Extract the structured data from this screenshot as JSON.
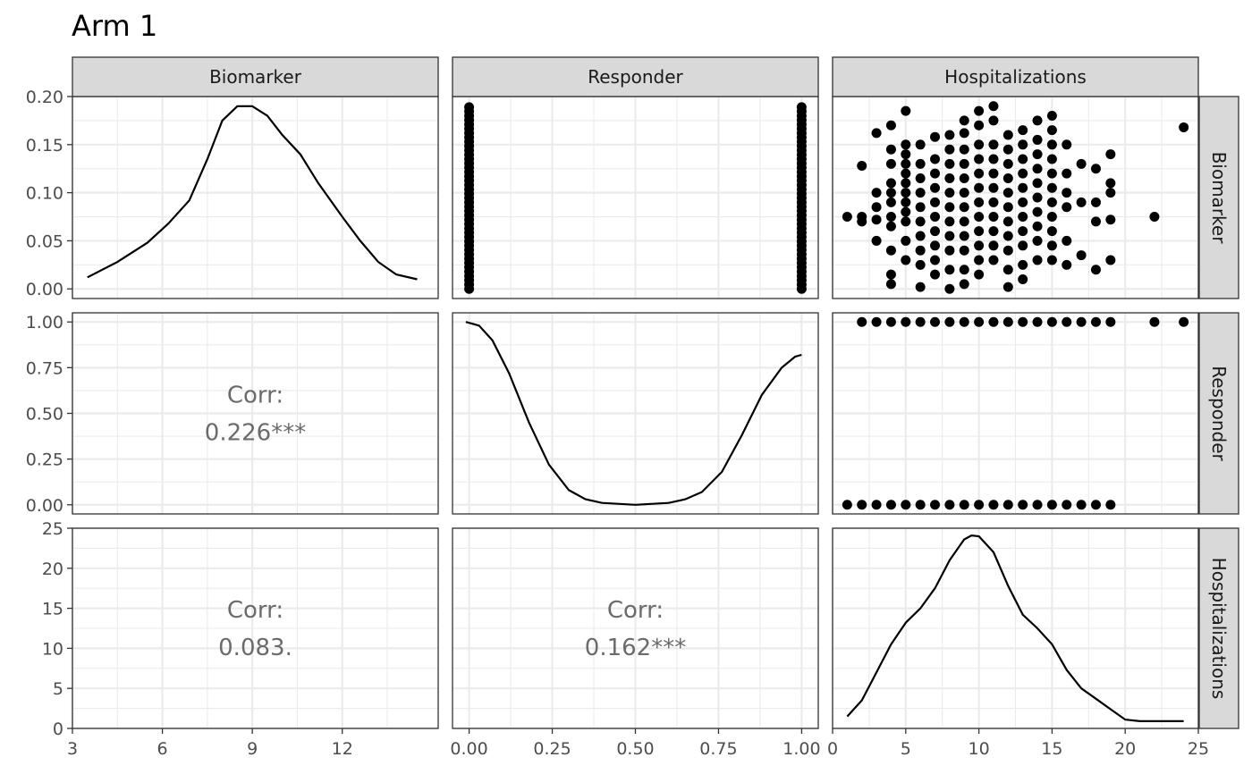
{
  "title": "Arm 1",
  "variables": [
    "Biomarker",
    "Responder",
    "Hospitalizations"
  ],
  "chart_data": {
    "type": "scatter",
    "matrix": "pairs",
    "title": "Arm 1",
    "strip_top": [
      "Biomarker",
      "Responder",
      "Hospitalizations"
    ],
    "strip_right": [
      "Biomarker",
      "Responder",
      "Hospitalizations"
    ],
    "x_axes": [
      {
        "variable": "Biomarker",
        "range": [
          3.0,
          15.2
        ],
        "ticks": [
          3,
          6,
          9,
          12
        ],
        "tick_labels": [
          "3",
          "6",
          "9",
          "12"
        ]
      },
      {
        "variable": "Responder",
        "range": [
          -0.05,
          1.05
        ],
        "ticks": [
          0,
          0.25,
          0.5,
          0.75,
          1.0
        ],
        "tick_labels": [
          "0.00",
          "0.25",
          "0.50",
          "0.75",
          "1.00"
        ]
      },
      {
        "variable": "Hospitalizations",
        "range": [
          0,
          25
        ],
        "ticks": [
          0,
          5,
          10,
          15,
          20,
          25
        ],
        "tick_labels": [
          "0",
          "5",
          "10",
          "15",
          "20",
          "25"
        ]
      }
    ],
    "y_axes": [
      {
        "variable": "Biomarker",
        "range": [
          -0.01,
          0.2
        ],
        "ticks": [
          0,
          0.05,
          0.1,
          0.15,
          0.2
        ],
        "tick_labels": [
          "0.00",
          "0.05",
          "0.10",
          "0.15",
          "0.20"
        ]
      },
      {
        "variable": "Responder",
        "range": [
          -0.05,
          1.05
        ],
        "ticks": [
          0,
          0.25,
          0.5,
          0.75,
          1.0
        ],
        "tick_labels": [
          "0.00",
          "0.25",
          "0.50",
          "0.75",
          "1.00"
        ]
      },
      {
        "variable": "Hospitalizations",
        "range": [
          0,
          25
        ],
        "ticks": [
          0,
          5,
          10,
          15,
          20,
          25
        ],
        "tick_labels": [
          "0",
          "5",
          "10",
          "15",
          "20",
          "25"
        ]
      }
    ],
    "density_biomarker": [
      [
        3.5,
        0.012
      ],
      [
        4.5,
        0.028
      ],
      [
        5.5,
        0.048
      ],
      [
        6.2,
        0.068
      ],
      [
        6.9,
        0.092
      ],
      [
        7.5,
        0.135
      ],
      [
        8.0,
        0.175
      ],
      [
        8.5,
        0.19
      ],
      [
        9.0,
        0.19
      ],
      [
        9.5,
        0.18
      ],
      [
        10.0,
        0.16
      ],
      [
        10.6,
        0.14
      ],
      [
        11.2,
        0.11
      ],
      [
        12.0,
        0.075
      ],
      [
        12.6,
        0.05
      ],
      [
        13.2,
        0.028
      ],
      [
        13.8,
        0.015
      ],
      [
        14.5,
        0.01
      ]
    ],
    "density_responder": [
      [
        -0.01,
        1.0
      ],
      [
        0.03,
        0.98
      ],
      [
        0.07,
        0.9
      ],
      [
        0.12,
        0.72
      ],
      [
        0.18,
        0.45
      ],
      [
        0.24,
        0.22
      ],
      [
        0.3,
        0.08
      ],
      [
        0.35,
        0.03
      ],
      [
        0.4,
        0.01
      ],
      [
        0.5,
        0.0
      ],
      [
        0.6,
        0.01
      ],
      [
        0.65,
        0.03
      ],
      [
        0.7,
        0.07
      ],
      [
        0.76,
        0.18
      ],
      [
        0.82,
        0.38
      ],
      [
        0.88,
        0.6
      ],
      [
        0.94,
        0.75
      ],
      [
        0.98,
        0.81
      ],
      [
        1.0,
        0.82
      ]
    ],
    "density_hospitalizations": [
      [
        1.0,
        1.5
      ],
      [
        2.0,
        3.5
      ],
      [
        3.0,
        7.0
      ],
      [
        4.0,
        10.5
      ],
      [
        5.0,
        13.2
      ],
      [
        6.0,
        15.0
      ],
      [
        7.0,
        17.5
      ],
      [
        8.0,
        21.0
      ],
      [
        9.0,
        23.6
      ],
      [
        9.5,
        24.1
      ],
      [
        10.0,
        24.0
      ],
      [
        11.0,
        22.0
      ],
      [
        12.0,
        17.8
      ],
      [
        13.0,
        14.2
      ],
      [
        14.0,
        12.5
      ],
      [
        15.0,
        10.5
      ],
      [
        16.0,
        7.3
      ],
      [
        17.0,
        5.0
      ],
      [
        18.0,
        3.7
      ],
      [
        19.0,
        2.4
      ],
      [
        20.0,
        1.1
      ],
      [
        21.0,
        0.9
      ],
      [
        22.0,
        0.9
      ],
      [
        23.0,
        0.9
      ],
      [
        24.0,
        0.9
      ]
    ],
    "responder_vs_biomarker": {
      "x_values": [
        0,
        1
      ],
      "y_range": [
        0.0,
        0.19
      ]
    },
    "hospitalizations_vs_biomarker": [
      [
        1,
        0.075
      ],
      [
        2,
        0.075
      ],
      [
        2,
        0.07
      ],
      [
        2,
        0.128
      ],
      [
        3,
        0.05
      ],
      [
        3,
        0.072
      ],
      [
        3,
        0.085
      ],
      [
        3,
        0.1
      ],
      [
        3,
        0.162
      ],
      [
        4,
        0.005
      ],
      [
        4,
        0.015
      ],
      [
        4,
        0.04
      ],
      [
        4,
        0.065
      ],
      [
        4,
        0.075
      ],
      [
        4,
        0.09
      ],
      [
        4,
        0.1
      ],
      [
        4,
        0.11
      ],
      [
        4,
        0.13
      ],
      [
        4,
        0.145
      ],
      [
        4,
        0.17
      ],
      [
        5,
        0.03
      ],
      [
        5,
        0.05
      ],
      [
        5,
        0.07
      ],
      [
        5,
        0.08
      ],
      [
        5,
        0.09
      ],
      [
        5,
        0.1
      ],
      [
        5,
        0.11
      ],
      [
        5,
        0.12
      ],
      [
        5,
        0.13
      ],
      [
        5,
        0.14
      ],
      [
        5,
        0.15
      ],
      [
        5,
        0.185
      ],
      [
        6,
        0.002
      ],
      [
        6,
        0.025
      ],
      [
        6,
        0.04
      ],
      [
        6,
        0.055
      ],
      [
        6,
        0.07
      ],
      [
        6,
        0.085
      ],
      [
        6,
        0.1
      ],
      [
        6,
        0.115
      ],
      [
        6,
        0.13
      ],
      [
        6,
        0.15
      ],
      [
        7,
        0.015
      ],
      [
        7,
        0.03
      ],
      [
        7,
        0.045
      ],
      [
        7,
        0.06
      ],
      [
        7,
        0.075
      ],
      [
        7,
        0.09
      ],
      [
        7,
        0.105
      ],
      [
        7,
        0.12
      ],
      [
        7,
        0.135
      ],
      [
        7,
        0.158
      ],
      [
        8,
        0.0
      ],
      [
        8,
        0.02
      ],
      [
        8,
        0.04
      ],
      [
        8,
        0.055
      ],
      [
        8,
        0.07
      ],
      [
        8,
        0.085
      ],
      [
        8,
        0.1
      ],
      [
        8,
        0.115
      ],
      [
        8,
        0.13
      ],
      [
        8,
        0.145
      ],
      [
        8,
        0.16
      ],
      [
        9,
        0.005
      ],
      [
        9,
        0.02
      ],
      [
        9,
        0.04
      ],
      [
        9,
        0.055
      ],
      [
        9,
        0.07
      ],
      [
        9,
        0.085
      ],
      [
        9,
        0.1
      ],
      [
        9,
        0.115
      ],
      [
        9,
        0.13
      ],
      [
        9,
        0.145
      ],
      [
        9,
        0.162
      ],
      [
        9,
        0.175
      ],
      [
        10,
        0.015
      ],
      [
        10,
        0.03
      ],
      [
        10,
        0.045
      ],
      [
        10,
        0.06
      ],
      [
        10,
        0.075
      ],
      [
        10,
        0.09
      ],
      [
        10,
        0.105
      ],
      [
        10,
        0.12
      ],
      [
        10,
        0.135
      ],
      [
        10,
        0.15
      ],
      [
        10,
        0.17
      ],
      [
        10,
        0.185
      ],
      [
        11,
        0.03
      ],
      [
        11,
        0.045
      ],
      [
        11,
        0.06
      ],
      [
        11,
        0.075
      ],
      [
        11,
        0.09
      ],
      [
        11,
        0.105
      ],
      [
        11,
        0.12
      ],
      [
        11,
        0.135
      ],
      [
        11,
        0.15
      ],
      [
        11,
        0.175
      ],
      [
        11,
        0.19
      ],
      [
        12,
        0.002
      ],
      [
        12,
        0.02
      ],
      [
        12,
        0.04
      ],
      [
        12,
        0.055
      ],
      [
        12,
        0.07
      ],
      [
        12,
        0.085
      ],
      [
        12,
        0.1
      ],
      [
        12,
        0.115
      ],
      [
        12,
        0.13
      ],
      [
        12,
        0.145
      ],
      [
        12,
        0.16
      ],
      [
        13,
        0.01
      ],
      [
        13,
        0.025
      ],
      [
        13,
        0.045
      ],
      [
        13,
        0.06
      ],
      [
        13,
        0.075
      ],
      [
        13,
        0.09
      ],
      [
        13,
        0.105
      ],
      [
        13,
        0.12
      ],
      [
        13,
        0.135
      ],
      [
        13,
        0.15
      ],
      [
        13,
        0.165
      ],
      [
        14,
        0.03
      ],
      [
        14,
        0.05
      ],
      [
        14,
        0.065
      ],
      [
        14,
        0.08
      ],
      [
        14,
        0.095
      ],
      [
        14,
        0.11
      ],
      [
        14,
        0.125
      ],
      [
        14,
        0.14
      ],
      [
        14,
        0.155
      ],
      [
        14,
        0.175
      ],
      [
        15,
        0.03
      ],
      [
        15,
        0.045
      ],
      [
        15,
        0.06
      ],
      [
        15,
        0.075
      ],
      [
        15,
        0.09
      ],
      [
        15,
        0.105
      ],
      [
        15,
        0.12
      ],
      [
        15,
        0.135
      ],
      [
        15,
        0.15
      ],
      [
        15,
        0.165
      ],
      [
        15,
        0.18
      ],
      [
        16,
        0.025
      ],
      [
        16,
        0.05
      ],
      [
        16,
        0.085
      ],
      [
        16,
        0.1
      ],
      [
        16,
        0.12
      ],
      [
        16,
        0.15
      ],
      [
        17,
        0.035
      ],
      [
        17,
        0.09
      ],
      [
        17,
        0.13
      ],
      [
        18,
        0.02
      ],
      [
        18,
        0.07
      ],
      [
        18,
        0.09
      ],
      [
        18,
        0.125
      ],
      [
        19,
        0.03
      ],
      [
        19,
        0.072
      ],
      [
        19,
        0.1
      ],
      [
        19,
        0.11
      ],
      [
        19,
        0.14
      ],
      [
        22,
        0.075
      ],
      [
        24,
        0.168
      ]
    ],
    "hospitalizations_vs_responder": {
      "responder_0": [
        1,
        2,
        3,
        4,
        5,
        6,
        7,
        8,
        9,
        10,
        11,
        12,
        13,
        14,
        15,
        16,
        17,
        18,
        19
      ],
      "responder_1": [
        2,
        3,
        4,
        5,
        6,
        7,
        8,
        9,
        10,
        11,
        12,
        13,
        14,
        15,
        16,
        17,
        18,
        19,
        22,
        24
      ]
    },
    "correlations": [
      {
        "label": "Corr:",
        "value": "0.226***",
        "pair": [
          "Responder",
          "Biomarker"
        ]
      },
      {
        "label": "Corr:",
        "value": "0.083.",
        "pair": [
          "Hospitalizations",
          "Biomarker"
        ]
      },
      {
        "label": "Corr:",
        "value": "0.162***",
        "pair": [
          "Hospitalizations",
          "Responder"
        ]
      }
    ],
    "grid": true,
    "colors": {
      "points": "#000000",
      "lines": "#000000",
      "strip": "#d9d9d9",
      "corr_text": "#6b6b6b"
    }
  }
}
